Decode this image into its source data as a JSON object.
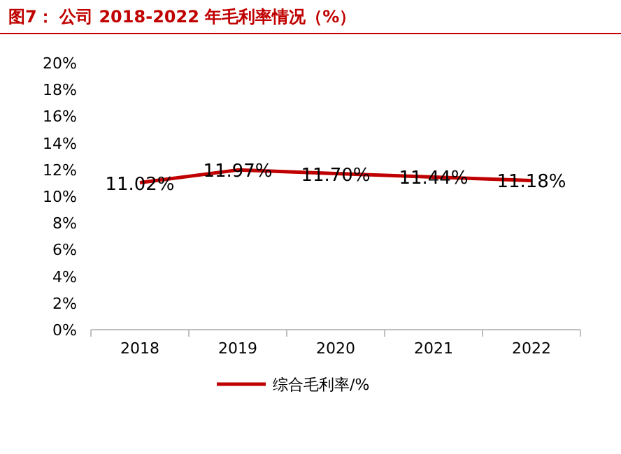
{
  "chart_data": {
    "type": "line",
    "title": "图7：  公司 2018-2022 年毛利率情况（%）",
    "categories": [
      "2018",
      "2019",
      "2020",
      "2021",
      "2022"
    ],
    "series": [
      {
        "name": "综合毛利率/%",
        "color": "#c00000",
        "values": [
          11.02,
          11.97,
          11.7,
          11.44,
          11.18
        ],
        "value_labels": [
          "11.02%",
          "11.97%",
          "11.70%",
          "11.44%",
          "11.18%"
        ]
      }
    ],
    "ylim": [
      0,
      20
    ],
    "yticks": [
      {
        "value": 0,
        "label": "0%"
      },
      {
        "value": 2,
        "label": "2%"
      },
      {
        "value": 4,
        "label": "4%"
      },
      {
        "value": 6,
        "label": "6%"
      },
      {
        "value": 8,
        "label": "8%"
      },
      {
        "value": 10,
        "label": "10%"
      },
      {
        "value": 12,
        "label": "12%"
      },
      {
        "value": 14,
        "label": "14%"
      },
      {
        "value": 16,
        "label": "16%"
      },
      {
        "value": 18,
        "label": "18%"
      },
      {
        "value": 20,
        "label": "20%"
      }
    ],
    "legend": "bottom",
    "grid": false,
    "marker": "none",
    "line_style": "solid"
  }
}
